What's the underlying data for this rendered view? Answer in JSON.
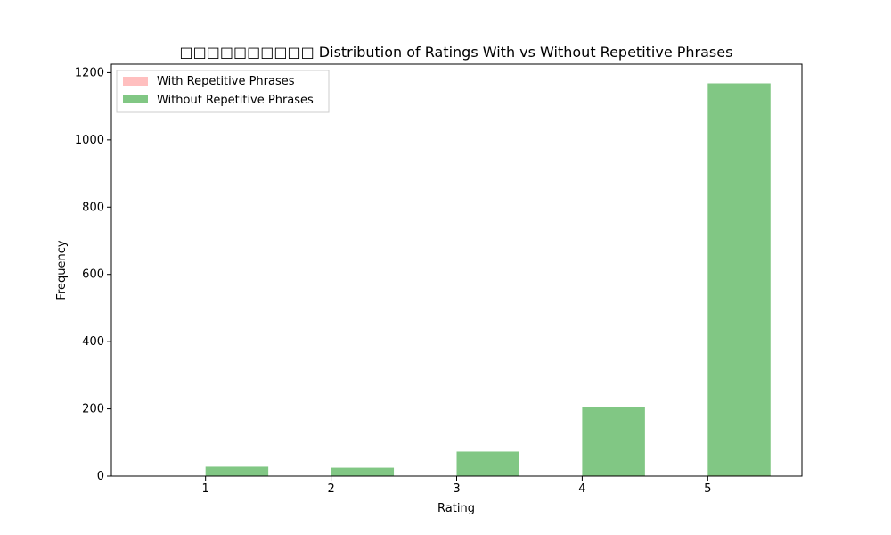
{
  "chart_data": {
    "type": "bar",
    "title": "□□□□□□□□□□ Distribution of Ratings With vs Without Repetitive Phrases",
    "xlabel": "Rating",
    "ylabel": "Frequency",
    "categories": [
      "1",
      "2",
      "3",
      "4",
      "5"
    ],
    "x_ticks": [
      "1",
      "2",
      "3",
      "4",
      "5"
    ],
    "y_ticks": [
      "0",
      "200",
      "400",
      "600",
      "800",
      "1000",
      "1200"
    ],
    "xlim": [
      0.25,
      5.75
    ],
    "ylim": [
      0,
      1225
    ],
    "grid": false,
    "legend_position": "top-left",
    "series": [
      {
        "name": "With Repetitive Phrases",
        "color": "#ff7f7f",
        "opacity": 0.5,
        "values": [
          0,
          0,
          0,
          2,
          3
        ]
      },
      {
        "name": "Without Repetitive Phrases",
        "color": "#4caf50",
        "opacity": 0.7,
        "values": [
          28,
          25,
          73,
          205,
          1168
        ]
      }
    ]
  }
}
